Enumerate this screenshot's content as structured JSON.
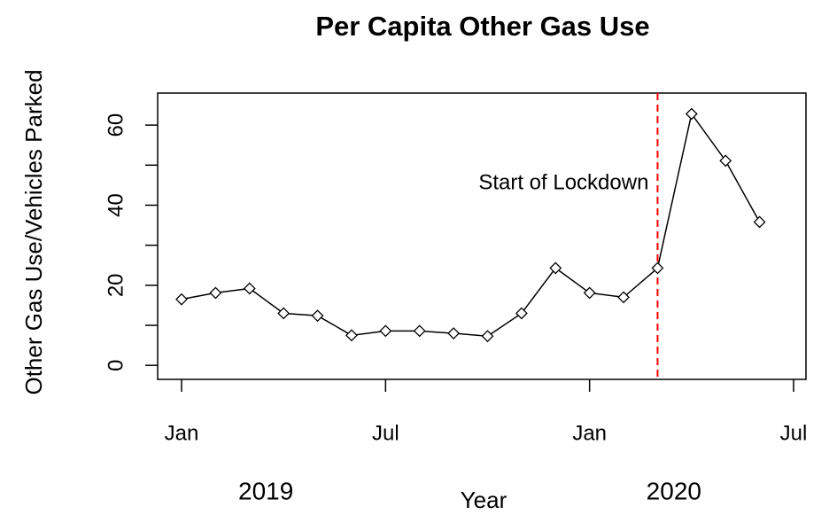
{
  "chart_data": {
    "type": "line",
    "title": "Per Capita Other Gas Use",
    "xlabel": "Year",
    "ylabel": "Other Gas Use/Vehicles Parked",
    "x": [
      "2019-01",
      "2019-02",
      "2019-03",
      "2019-04",
      "2019-05",
      "2019-06",
      "2019-07",
      "2019-08",
      "2019-09",
      "2019-10",
      "2019-11",
      "2019-12",
      "2020-01",
      "2020-02",
      "2020-03",
      "2020-04",
      "2020-05",
      "2020-06"
    ],
    "series": [
      {
        "color": "#000000",
        "values": [
          16.5,
          18.1,
          19.2,
          13,
          12.4,
          7.5,
          8.6,
          8.6,
          8,
          7.3,
          13,
          24.3,
          18.1,
          17,
          24.3,
          62.8,
          51.1,
          35.8
        ]
      }
    ],
    "xlim": [
      "2019-01",
      "2020-07"
    ],
    "xticks": [
      {
        "value": "2019-01",
        "label": "Jan"
      },
      {
        "value": "2019-07",
        "label": "Jul"
      },
      {
        "value": "2020-01",
        "label": "Jan"
      },
      {
        "value": "2020-07",
        "label": "Jul"
      }
    ],
    "year_labels": [
      {
        "value": "2019-04",
        "label": "2019"
      },
      {
        "value": "2020-04",
        "label": "2020"
      }
    ],
    "ylim": [
      -3.5,
      68
    ],
    "yticks": [
      0,
      20,
      40,
      60
    ],
    "yminor_ticks": [
      10,
      30,
      50
    ],
    "annotations": [
      {
        "x": "2020-03",
        "label": "Start of Lockdown",
        "color": "#ff0000"
      }
    ]
  }
}
